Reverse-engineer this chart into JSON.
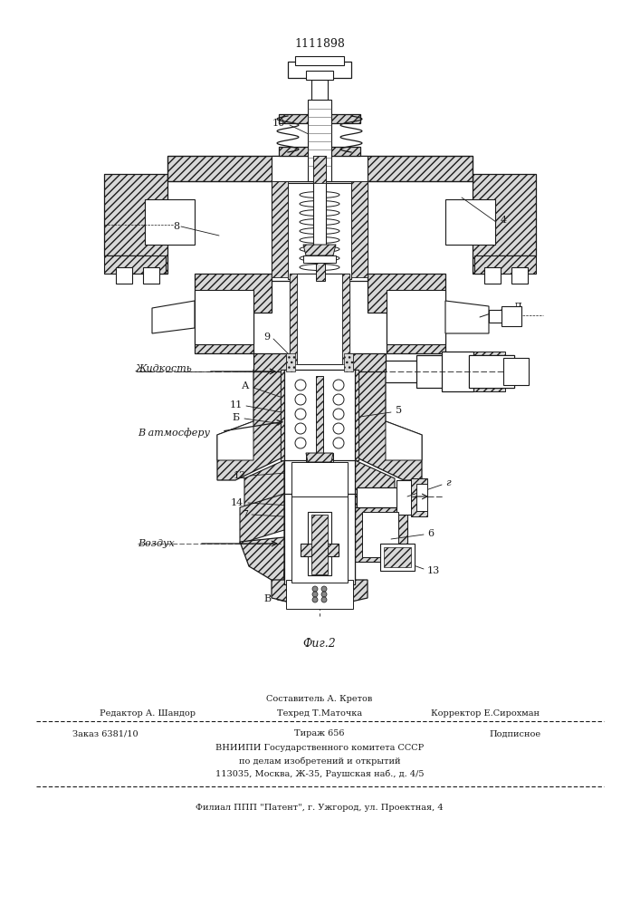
{
  "title_number": "1111898",
  "fig_label": "Фиг.2",
  "bg_color": "#ffffff",
  "line_color": "#1a1a1a",
  "page_width": 7.07,
  "page_height": 10.0,
  "footer": {
    "line1_center": "Составитель А. Кретов",
    "line2_left": "Редактор А. Шандор",
    "line2_center": "Техред Т.Маточка",
    "line2_right": "Корректор Е.Сирохман",
    "line3_left": "Заказ 6381/10",
    "line3_center": "Тираж 656",
    "line3_right": "Подписное",
    "line4": "ВНИИПИ Государственного комитета СССР",
    "line5": "по делам изобретений и открытий",
    "line6": "113035, Москва, Ж-35, Раушская наб., д. 4/5",
    "line7": "Филиал ППП \"Патент\", г. Ужгород, ул. Проектная, 4"
  }
}
